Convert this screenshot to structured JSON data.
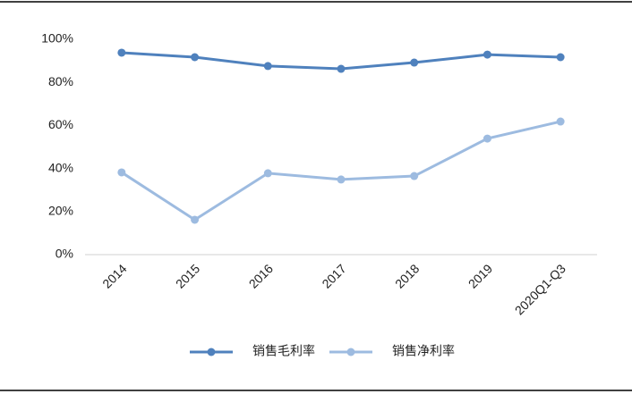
{
  "chart_data": {
    "type": "line",
    "categories": [
      "2014",
      "2015",
      "2016",
      "2017",
      "2018",
      "2019",
      "2020Q1-Q3"
    ],
    "series": [
      {
        "name": "销售毛利率",
        "color": "#4f81bd",
        "values": [
          93.8,
          91.7,
          87.6,
          86.3,
          89.2,
          92.9,
          91.7
        ]
      },
      {
        "name": "销售净利率",
        "color": "#9dbbe0",
        "values": [
          38.2,
          16.2,
          37.8,
          34.9,
          36.5,
          53.9,
          61.8
        ]
      }
    ],
    "ylim": [
      0,
      100
    ],
    "yticks": [
      {
        "value": 0,
        "label": "0%"
      },
      {
        "value": 20,
        "label": "20%"
      },
      {
        "value": 40,
        "label": "40%"
      },
      {
        "value": 60,
        "label": "60%"
      },
      {
        "value": 80,
        "label": "80%"
      },
      {
        "value": 100,
        "label": "100%"
      }
    ],
    "grid": false,
    "legend": "bottom"
  }
}
